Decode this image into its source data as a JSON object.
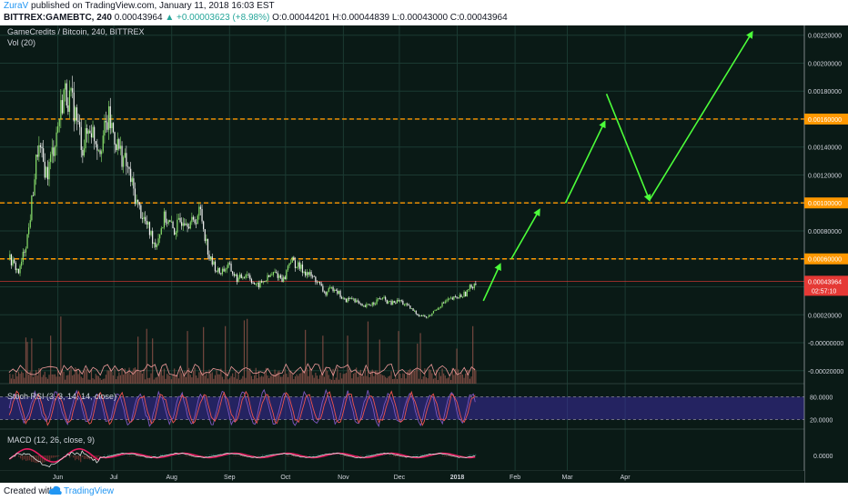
{
  "header": {
    "author": "ZuraV",
    "published_text": " published on TradingView.com, January 11, 2018 16:03 EST",
    "symbol": "BITTREX:GAMEBTC, 240",
    "last": "0.00043964",
    "change": "▲ +0.00003623 (+8.98%)",
    "ohlc": "O:0.00044201 H:0.00044839 L:0.00043000 C:0.00043964"
  },
  "legend": {
    "title": "GameCredits / Bitcoin, 240, BITTREX",
    "vol": "Vol (20)",
    "stoch": "Stoch RSI (3, 3, 14, 14, close)",
    "macd": "MACD (12, 26, close, 9)"
  },
  "price_tag": {
    "value": "0.00043964",
    "countdown": "02:57:10"
  },
  "footer": {
    "created_with": "Created with",
    "brand": "TradingView"
  },
  "colors": {
    "background": "#0a1a16",
    "candle_up": "#8ae26c",
    "candle_down": "#f2f2f2",
    "level_line": "#ff9800",
    "forecast_arrow": "#4cff3a",
    "volume": "#8f5348",
    "stoch_band": "#3b2ba0",
    "stoch_k": "#7e57c2",
    "stoch_d": "#ef5350",
    "macd_line": "#e0e0e0",
    "macd_signal": "#e91e63"
  },
  "chart_data": {
    "type": "candlestick",
    "title": "GameCredits / Bitcoin, 240, BITTREX",
    "x_ticks": [
      "Jun",
      "Jul",
      "Aug",
      "Sep",
      "Oct",
      "Nov",
      "Dec",
      "2018",
      "Feb",
      "Mar",
      "Apr"
    ],
    "y_ticks": [
      0.0022,
      0.002,
      0.0018,
      0.0016,
      0.0014,
      0.0012,
      0.001,
      0.0008,
      0.0006,
      0.0004,
      0.0002,
      0.0,
      -0.0002
    ],
    "y_tick_labels": [
      "0.00220000",
      "0.00200000",
      "0.00180000",
      "0.00160000",
      "0.00140000",
      "0.00120000",
      "0.00100000",
      "0.00080000",
      "0.00060000",
      "0.00040000",
      "0.00020000",
      "-0.00000000",
      "-0.00020000"
    ],
    "ylim": [
      -0.00026,
      0.00225
    ],
    "price_path": [
      {
        "t": "2017-05-06",
        "p": 0.0006
      },
      {
        "t": "2017-05-11",
        "p": 0.0005
      },
      {
        "t": "2017-05-16",
        "p": 0.0008
      },
      {
        "t": "2017-05-21",
        "p": 0.0014
      },
      {
        "t": "2017-05-26",
        "p": 0.0012
      },
      {
        "t": "2017-05-31",
        "p": 0.0015
      },
      {
        "t": "2017-06-04",
        "p": 0.0018
      },
      {
        "t": "2017-06-09",
        "p": 0.0017
      },
      {
        "t": "2017-06-14",
        "p": 0.0014
      },
      {
        "t": "2017-06-18",
        "p": 0.00155
      },
      {
        "t": "2017-06-23",
        "p": 0.0014
      },
      {
        "t": "2017-06-28",
        "p": 0.0016
      },
      {
        "t": "2017-07-03",
        "p": 0.0014
      },
      {
        "t": "2017-07-08",
        "p": 0.00125
      },
      {
        "t": "2017-07-13",
        "p": 0.001
      },
      {
        "t": "2017-07-18",
        "p": 0.00085
      },
      {
        "t": "2017-07-23",
        "p": 0.0007
      },
      {
        "t": "2017-07-28",
        "p": 0.0009
      },
      {
        "t": "2017-08-02",
        "p": 0.0008
      },
      {
        "t": "2017-08-07",
        "p": 0.0009
      },
      {
        "t": "2017-08-12",
        "p": 0.00085
      },
      {
        "t": "2017-08-16",
        "p": 0.00095
      },
      {
        "t": "2017-08-21",
        "p": 0.0006
      },
      {
        "t": "2017-08-26",
        "p": 0.0005
      },
      {
        "t": "2017-08-31",
        "p": 0.00055
      },
      {
        "t": "2017-09-05",
        "p": 0.00045
      },
      {
        "t": "2017-09-10",
        "p": 0.0005
      },
      {
        "t": "2017-09-15",
        "p": 0.0004
      },
      {
        "t": "2017-09-20",
        "p": 0.00045
      },
      {
        "t": "2017-09-25",
        "p": 0.0005
      },
      {
        "t": "2017-09-30",
        "p": 0.00045
      },
      {
        "t": "2017-10-03",
        "p": 0.0006
      },
      {
        "t": "2017-10-07",
        "p": 0.00055
      },
      {
        "t": "2017-10-12",
        "p": 0.0005
      },
      {
        "t": "2017-10-17",
        "p": 0.00045
      },
      {
        "t": "2017-10-22",
        "p": 0.00035
      },
      {
        "t": "2017-10-27",
        "p": 0.0004
      },
      {
        "t": "2017-11-01",
        "p": 0.0003
      },
      {
        "t": "2017-11-06",
        "p": 0.00032
      },
      {
        "t": "2017-11-11",
        "p": 0.00025
      },
      {
        "t": "2017-11-16",
        "p": 0.00028
      },
      {
        "t": "2017-11-21",
        "p": 0.00032
      },
      {
        "t": "2017-11-26",
        "p": 0.00028
      },
      {
        "t": "2017-12-01",
        "p": 0.0003
      },
      {
        "t": "2017-12-06",
        "p": 0.00025
      },
      {
        "t": "2017-12-11",
        "p": 0.0002
      },
      {
        "t": "2017-12-16",
        "p": 0.00018
      },
      {
        "t": "2017-12-21",
        "p": 0.00025
      },
      {
        "t": "2017-12-26",
        "p": 0.0003
      },
      {
        "t": "2017-12-31",
        "p": 0.00032
      },
      {
        "t": "2018-01-05",
        "p": 0.00035
      },
      {
        "t": "2018-01-08",
        "p": 0.0004
      },
      {
        "t": "2018-01-11",
        "p": 0.00044
      }
    ],
    "horizontal_levels": [
      {
        "value": 0.0016,
        "label": "0.00160000"
      },
      {
        "value": 0.001,
        "label": "0.00100000"
      },
      {
        "value": 0.0006,
        "label": "0.00060000"
      }
    ],
    "forecast_arrows": [
      {
        "from": {
          "t": "2018-01-15",
          "p": 0.0003
        },
        "to": {
          "t": "2018-01-24",
          "p": 0.00056
        }
      },
      {
        "from": {
          "t": "2018-01-30",
          "p": 0.0006
        },
        "to": {
          "t": "2018-02-14",
          "p": 0.00095
        }
      },
      {
        "from": {
          "t": "2018-02-28",
          "p": 0.001
        },
        "to": {
          "t": "2018-03-21",
          "p": 0.00158
        }
      },
      {
        "from": {
          "t": "2018-03-22",
          "p": 0.00178
        },
        "to": {
          "t": "2018-04-14",
          "p": 0.00102
        }
      },
      {
        "from": {
          "t": "2018-04-14",
          "p": 0.00102
        },
        "to": {
          "t": "2018-06-08",
          "p": 0.00222
        }
      }
    ],
    "stoch_rsi": {
      "levels": [
        80,
        20
      ],
      "tick_labels": [
        "80.0000",
        "20.0000"
      ]
    },
    "macd": {
      "tick_labels": [
        "0.0000"
      ]
    },
    "grid": true
  }
}
